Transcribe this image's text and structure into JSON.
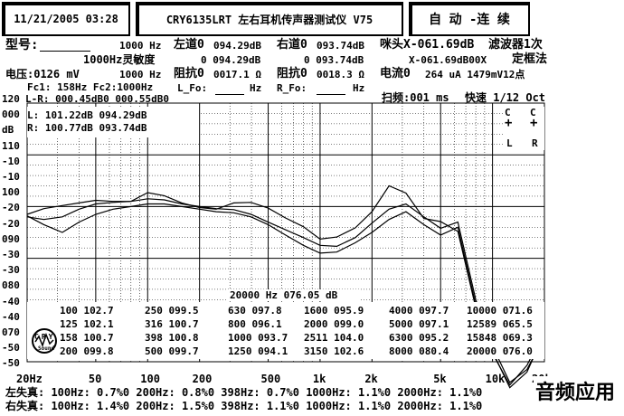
{
  "header": {
    "datetime": "11/21/2005 03:28",
    "title": "CRY6135LRT 左右耳机传声器测试仪 V75",
    "mode_button": "自 动 -连 续"
  },
  "info": {
    "model_label": "型号:",
    "row1_freq": "1000 Hz",
    "left_label": "左道0",
    "left_val": "094.29dB",
    "right_label": "右道0",
    "right_val": "093.74dB",
    "mic_label": "咪头X-061.69dB",
    "filter_label": "滤波器1次",
    "sens_label": "1000Hz灵敏度",
    "sens_l": "0 094.29dB",
    "sens_r": "0 093.74dB",
    "mic2": "X-061.69dB00X",
    "fixed": "定框法",
    "voltage": "电压:0126 mV",
    "row3_freq": "1000 Hz",
    "imp_l_label": "阻抗0",
    "imp_l": "0017.1 Ω",
    "imp_r_label": "阻抗0",
    "imp_r": "0018.3 Ω",
    "current": "电流0",
    "current_val": "264 uA 1479mV12点",
    "fc": "Fc1: 158Hz Fc2:1000Hz",
    "fo": "L_Fo:",
    "fo_unit": "Hz",
    "rfo": "R_Fo:",
    "rfo_unit": "Hz",
    "scan": "扫频:001 ms",
    "speed": "快速 1/12 Oct",
    "lr_diff": "L-R: 000.45dB0 000.55dB0",
    "l_line": "L:  101.22dB  094.29dB",
    "r_line": "R:  100.77dB  093.74dB",
    "cl": "C",
    "cr": "C",
    "l_marker": "L",
    "r_marker": "R"
  },
  "y_labels": [
    "120",
    "000",
    "dB",
    "110",
    "-10",
    "-10",
    "100",
    "-20",
    "-20",
    "090",
    "-30",
    "-30",
    "080",
    "-40",
    "-40",
    "070",
    "-50",
    "-50"
  ],
  "x_labels": [
    "20Hz",
    "50",
    "100",
    "200",
    "500",
    "1k",
    "2k",
    "5k",
    "10k",
    "20k"
  ],
  "readout_center": "20000 Hz  076.05 dB",
  "table": [
    [
      "100 102.7",
      "250 099.5",
      "630 097.8",
      "1600 095.9",
      "4000 097.7",
      "10000 071.6"
    ],
    [
      "125 102.1",
      "316 100.7",
      "800 096.1",
      "2000 099.0",
      "5000 097.1",
      "12589 065.5"
    ],
    [
      "158 100.7",
      "398 100.8",
      "1000 093.7",
      "2511 104.0",
      "6300 095.2",
      "15848 069.3"
    ],
    [
      "200 099.8",
      "500 099.7",
      "1250 094.1",
      "3150 102.6",
      "8000 080.4",
      "20000 076.0"
    ]
  ],
  "logo_text": "CRY",
  "logo_sub": "Sound",
  "distortion": {
    "left": "左失真:  100Hz: 0.7%0  200Hz: 0.8%0  398Hz: 0.7%0 1000Hz: 1.1%0 2000Hz: 1.1%0",
    "right": "右失真:  100Hz: 1.4%0  200Hz: 1.5%0  398Hz: 1.1%0 1000Hz: 1.1%0 2000Hz: 1.1%0"
  },
  "watermark": "音频应用",
  "chart_data": {
    "type": "line",
    "x_scale": "log",
    "xlim": [
      20,
      20000
    ],
    "series": [
      {
        "x": [
          20,
          25,
          32,
          40,
          50,
          63,
          80,
          100,
          125,
          158,
          200,
          250,
          316,
          398,
          500,
          630,
          800,
          1000,
          1250,
          1600,
          2000,
          2511,
          3150,
          4000,
          5000,
          6300,
          8000,
          10000,
          12589,
          15848,
          20000
        ],
        "values": [
          98.5,
          99.6,
          100.2,
          100.7,
          101.2,
          101.0,
          101.0,
          102.7,
          102.1,
          100.7,
          99.8,
          99.5,
          100.7,
          100.8,
          99.7,
          97.8,
          96.1,
          93.7,
          94.1,
          95.9,
          99.0,
          104.0,
          102.6,
          97.7,
          97.1,
          95.2,
          80.4,
          71.6,
          65.5,
          69.3,
          76.0
        ]
      },
      {
        "x": [
          20,
          25,
          32,
          40,
          50,
          63,
          80,
          100,
          125,
          158,
          200,
          250,
          316,
          398,
          500,
          630,
          800,
          1000,
          1250,
          1600,
          2000,
          2511,
          3150,
          4000,
          5000,
          6300,
          8000,
          10000,
          12589,
          15848,
          20000
        ],
        "values": [
          98.0,
          97.5,
          98.0,
          99.5,
          100.5,
          100.8,
          101.0,
          101.5,
          101.3,
          100.5,
          100.0,
          99.6,
          99.4,
          98.5,
          97.0,
          95.5,
          94.0,
          92.5,
          92.3,
          94.0,
          96.8,
          99.5,
          100.5,
          98.0,
          95.8,
          97.0,
          82.0,
          73.0,
          66.0,
          68.5,
          75.0
        ]
      },
      {
        "x": [
          20,
          25,
          32,
          40,
          50,
          63,
          80,
          100,
          125,
          158,
          200,
          250,
          316,
          398,
          500,
          630,
          800,
          1000,
          1250,
          1600,
          2000,
          2511,
          3150,
          4000,
          5000,
          6300,
          8000,
          10000,
          12589,
          15848,
          20000
        ],
        "values": [
          98.2,
          96.5,
          95.0,
          97.0,
          98.5,
          99.5,
          100.0,
          100.5,
          100.5,
          100.0,
          99.5,
          99.0,
          98.8,
          98.0,
          96.5,
          94.5,
          92.5,
          91.0,
          91.2,
          93.0,
          95.0,
          97.5,
          99.0,
          96.5,
          94.5,
          96.0,
          81.0,
          72.0,
          65.0,
          68.0,
          75.5
        ]
      }
    ],
    "ylim": [
      70,
      120
    ]
  }
}
